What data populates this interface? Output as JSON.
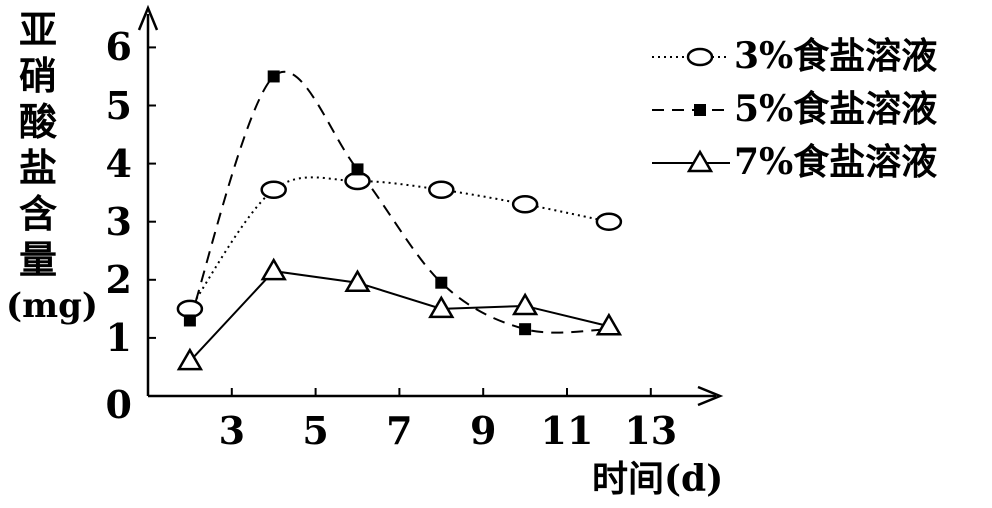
{
  "chart_data": {
    "type": "line",
    "xlabel": "时间(d)",
    "ylabel": "亚硝酸盐含量(mg)",
    "xlim": [
      1,
      13
    ],
    "ylim": [
      0,
      6
    ],
    "x_ticks": [
      "3",
      "5",
      "7",
      "9",
      "11",
      "13"
    ],
    "y_ticks": [
      "0",
      "1",
      "2",
      "3",
      "4",
      "5",
      "6"
    ],
    "grid": false,
    "legend": "top-right",
    "series": [
      {
        "name": "3%食盐溶液",
        "marker": "open-circle",
        "line": "dotted",
        "x": [
          2,
          4,
          6,
          8,
          10,
          12
        ],
        "y": [
          1.5,
          3.55,
          3.7,
          3.55,
          3.3,
          3.0
        ]
      },
      {
        "name": "5%食盐溶液",
        "marker": "filled-square",
        "line": "dashed",
        "x": [
          2,
          4,
          6,
          8,
          10,
          12
        ],
        "y": [
          1.3,
          5.5,
          3.9,
          1.95,
          1.15,
          1.15
        ]
      },
      {
        "name": "7%食盐溶液",
        "marker": "open-triangle",
        "line": "solid",
        "x": [
          2,
          4,
          6,
          8,
          10,
          12
        ],
        "y": [
          0.6,
          2.15,
          1.95,
          1.5,
          1.55,
          1.2
        ]
      }
    ]
  }
}
